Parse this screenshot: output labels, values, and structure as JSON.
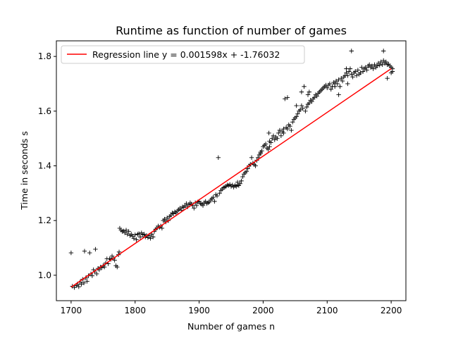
{
  "chart_data": {
    "type": "scatter",
    "title": "Runtime as function of number of games",
    "xlabel": "Number of games n",
    "ylabel": "Time in seconds s",
    "xlim": [
      1677,
      2223
    ],
    "ylim": [
      0.907,
      1.857
    ],
    "xticks": [
      1700,
      1800,
      1900,
      2000,
      2100,
      2200
    ],
    "xtick_labels": [
      "1700",
      "1800",
      "1900",
      "2000",
      "2100",
      "2200"
    ],
    "yticks": [
      1.0,
      1.2,
      1.4,
      1.6,
      1.8
    ],
    "ytick_labels": [
      "1.0",
      "1.2",
      "1.4",
      "1.6",
      "1.8"
    ],
    "grid": false,
    "legend_position": "top-left",
    "series": [
      {
        "name": "",
        "kind": "points",
        "marker": "+",
        "color": "#000000",
        "points": [
          [
            1700,
            1.082
          ],
          [
            1702,
            0.96
          ],
          [
            1705,
            0.955
          ],
          [
            1708,
            0.962
          ],
          [
            1710,
            0.968
          ],
          [
            1712,
            0.958
          ],
          [
            1714,
            0.975
          ],
          [
            1716,
            0.967
          ],
          [
            1718,
            0.985
          ],
          [
            1720,
            0.972
          ],
          [
            1721,
            1.088
          ],
          [
            1723,
            0.99
          ],
          [
            1725,
            0.978
          ],
          [
            1727,
            0.998
          ],
          [
            1729,
            1.082
          ],
          [
            1731,
            1.005
          ],
          [
            1733,
            0.998
          ],
          [
            1735,
            1.02
          ],
          [
            1737,
            1.012
          ],
          [
            1738,
            1.095
          ],
          [
            1740,
            1.005
          ],
          [
            1742,
            1.025
          ],
          [
            1744,
            1.02
          ],
          [
            1746,
            1.03
          ],
          [
            1748,
            1.028
          ],
          [
            1750,
            1.035
          ],
          [
            1752,
            1.03
          ],
          [
            1754,
            1.045
          ],
          [
            1756,
            1.06
          ],
          [
            1758,
            1.042
          ],
          [
            1760,
            1.06
          ],
          [
            1762,
            1.058
          ],
          [
            1764,
            1.07
          ],
          [
            1766,
            1.062
          ],
          [
            1768,
            1.055
          ],
          [
            1770,
            1.035
          ],
          [
            1772,
            1.03
          ],
          [
            1774,
            1.075
          ],
          [
            1775,
            1.085
          ],
          [
            1776,
            1.172
          ],
          [
            1778,
            1.165
          ],
          [
            1780,
            1.16
          ],
          [
            1782,
            1.162
          ],
          [
            1784,
            1.155
          ],
          [
            1786,
            1.165
          ],
          [
            1788,
            1.15
          ],
          [
            1790,
            1.16
          ],
          [
            1792,
            1.145
          ],
          [
            1794,
            1.15
          ],
          [
            1796,
            1.142
          ],
          [
            1798,
            1.135
          ],
          [
            1800,
            1.148
          ],
          [
            1802,
            1.13
          ],
          [
            1804,
            1.15
          ],
          [
            1806,
            1.152
          ],
          [
            1808,
            1.14
          ],
          [
            1810,
            1.155
          ],
          [
            1812,
            1.148
          ],
          [
            1814,
            1.15
          ],
          [
            1816,
            1.14
          ],
          [
            1818,
            1.145
          ],
          [
            1820,
            1.138
          ],
          [
            1822,
            1.145
          ],
          [
            1824,
            1.135
          ],
          [
            1826,
            1.15
          ],
          [
            1828,
            1.14
          ],
          [
            1830,
            1.16
          ],
          [
            1832,
            1.168
          ],
          [
            1834,
            1.172
          ],
          [
            1836,
            1.18
          ],
          [
            1838,
            1.175
          ],
          [
            1840,
            1.18
          ],
          [
            1842,
            1.172
          ],
          [
            1844,
            1.2
          ],
          [
            1846,
            1.205
          ],
          [
            1848,
            1.195
          ],
          [
            1850,
            1.21
          ],
          [
            1852,
            1.2
          ],
          [
            1854,
            1.215
          ],
          [
            1856,
            1.22
          ],
          [
            1858,
            1.228
          ],
          [
            1860,
            1.225
          ],
          [
            1862,
            1.232
          ],
          [
            1864,
            1.228
          ],
          [
            1866,
            1.235
          ],
          [
            1868,
            1.24
          ],
          [
            1870,
            1.245
          ],
          [
            1872,
            1.238
          ],
          [
            1874,
            1.25
          ],
          [
            1876,
            1.248
          ],
          [
            1878,
            1.255
          ],
          [
            1880,
            1.262
          ],
          [
            1882,
            1.25
          ],
          [
            1884,
            1.258
          ],
          [
            1886,
            1.265
          ],
          [
            1888,
            1.26
          ],
          [
            1890,
            1.255
          ],
          [
            1892,
            1.245
          ],
          [
            1894,
            1.265
          ],
          [
            1896,
            1.255
          ],
          [
            1898,
            1.268
          ],
          [
            1900,
            1.27
          ],
          [
            1902,
            1.262
          ],
          [
            1904,
            1.26
          ],
          [
            1906,
            1.255
          ],
          [
            1908,
            1.265
          ],
          [
            1910,
            1.27
          ],
          [
            1912,
            1.262
          ],
          [
            1914,
            1.265
          ],
          [
            1916,
            1.268
          ],
          [
            1918,
            1.275
          ],
          [
            1920,
            1.28
          ],
          [
            1922,
            1.285
          ],
          [
            1924,
            1.27
          ],
          [
            1926,
            1.295
          ],
          [
            1928,
            1.29
          ],
          [
            1930,
            1.43
          ],
          [
            1932,
            1.3
          ],
          [
            1934,
            1.31
          ],
          [
            1936,
            1.315
          ],
          [
            1938,
            1.32
          ],
          [
            1940,
            1.322
          ],
          [
            1942,
            1.325
          ],
          [
            1944,
            1.33
          ],
          [
            1946,
            1.328
          ],
          [
            1948,
            1.332
          ],
          [
            1950,
            1.325
          ],
          [
            1952,
            1.33
          ],
          [
            1954,
            1.322
          ],
          [
            1956,
            1.328
          ],
          [
            1958,
            1.325
          ],
          [
            1960,
            1.33
          ],
          [
            1962,
            1.328
          ],
          [
            1964,
            1.335
          ],
          [
            1966,
            1.345
          ],
          [
            1968,
            1.36
          ],
          [
            1970,
            1.37
          ],
          [
            1972,
            1.375
          ],
          [
            1974,
            1.38
          ],
          [
            1976,
            1.39
          ],
          [
            1978,
            1.4
          ],
          [
            1980,
            1.405
          ],
          [
            1982,
            1.43
          ],
          [
            1984,
            1.41
          ],
          [
            1986,
            1.405
          ],
          [
            1988,
            1.4
          ],
          [
            1990,
            1.42
          ],
          [
            1992,
            1.43
          ],
          [
            1994,
            1.44
          ],
          [
            1996,
            1.45
          ],
          [
            1998,
            1.455
          ],
          [
            2000,
            1.47
          ],
          [
            2002,
            1.475
          ],
          [
            2004,
            1.48
          ],
          [
            2006,
            1.465
          ],
          [
            2008,
            1.46
          ],
          [
            2010,
            1.49
          ],
          [
            2012,
            1.485
          ],
          [
            2014,
            1.5
          ],
          [
            2016,
            1.51
          ],
          [
            2018,
            1.495
          ],
          [
            2020,
            1.505
          ],
          [
            2022,
            1.5
          ],
          [
            2024,
            1.52
          ],
          [
            2026,
            1.53
          ],
          [
            2028,
            1.51
          ],
          [
            2030,
            1.525
          ],
          [
            2032,
            1.52
          ],
          [
            2034,
            1.645
          ],
          [
            2036,
            1.54
          ],
          [
            2038,
            1.535
          ],
          [
            2040,
            1.55
          ],
          [
            2042,
            1.545
          ],
          [
            2044,
            1.53
          ],
          [
            2046,
            1.56
          ],
          [
            2048,
            1.57
          ],
          [
            2050,
            1.575
          ],
          [
            2052,
            1.58
          ],
          [
            2054,
            1.59
          ],
          [
            2056,
            1.6
          ],
          [
            2058,
            1.605
          ],
          [
            2060,
            1.62
          ],
          [
            2062,
            1.61
          ],
          [
            2064,
            1.69
          ],
          [
            2066,
            1.6
          ],
          [
            2068,
            1.615
          ],
          [
            2070,
            1.625
          ],
          [
            2072,
            1.63
          ],
          [
            2074,
            1.64
          ],
          [
            2076,
            1.635
          ],
          [
            2078,
            1.645
          ],
          [
            2080,
            1.65
          ],
          [
            2082,
            1.66
          ],
          [
            2084,
            1.655
          ],
          [
            2086,
            1.665
          ],
          [
            2088,
            1.67
          ],
          [
            2090,
            1.675
          ],
          [
            2092,
            1.68
          ],
          [
            2094,
            1.685
          ],
          [
            2096,
            1.69
          ],
          [
            2098,
            1.695
          ],
          [
            2100,
            1.685
          ],
          [
            2102,
            1.695
          ],
          [
            2104,
            1.7
          ],
          [
            2106,
            1.68
          ],
          [
            2108,
            1.69
          ],
          [
            2110,
            1.705
          ],
          [
            2112,
            1.7
          ],
          [
            2114,
            1.71
          ],
          [
            2116,
            1.7
          ],
          [
            2118,
            1.715
          ],
          [
            2120,
            1.69
          ],
          [
            2122,
            1.72
          ],
          [
            2124,
            1.71
          ],
          [
            2126,
            1.725
          ],
          [
            2128,
            1.73
          ],
          [
            2130,
            1.74
          ],
          [
            2132,
            1.73
          ],
          [
            2134,
            1.745
          ],
          [
            2136,
            1.755
          ],
          [
            2138,
            1.735
          ],
          [
            2140,
            1.725
          ],
          [
            2142,
            1.74
          ],
          [
            2144,
            1.745
          ],
          [
            2146,
            1.73
          ],
          [
            2148,
            1.75
          ],
          [
            2150,
            1.735
          ],
          [
            2152,
            1.74
          ],
          [
            2154,
            1.76
          ],
          [
            2156,
            1.745
          ],
          [
            2158,
            1.755
          ],
          [
            2160,
            1.76
          ],
          [
            2162,
            1.75
          ],
          [
            2164,
            1.765
          ],
          [
            2166,
            1.77
          ],
          [
            2168,
            1.76
          ],
          [
            2170,
            1.765
          ],
          [
            2172,
            1.755
          ],
          [
            2174,
            1.77
          ],
          [
            2176,
            1.76
          ],
          [
            2178,
            1.765
          ],
          [
            2180,
            1.775
          ],
          [
            2182,
            1.768
          ],
          [
            2184,
            1.78
          ],
          [
            2186,
            1.77
          ],
          [
            2188,
            1.785
          ],
          [
            2190,
            1.775
          ],
          [
            2192,
            1.78
          ],
          [
            2194,
            1.77
          ],
          [
            2196,
            1.772
          ],
          [
            2198,
            1.765
          ],
          [
            2200,
            1.76
          ],
          [
            2202,
            1.755
          ],
          [
            2009,
            1.52
          ],
          [
            2032,
            1.535
          ],
          [
            2038,
            1.65
          ],
          [
            2052,
            1.62
          ],
          [
            2060,
            1.67
          ],
          [
            2070,
            1.66
          ],
          [
            2072,
            1.67
          ],
          [
            2112,
            1.69
          ],
          [
            2118,
            1.66
          ],
          [
            2138,
            1.82
          ],
          [
            2188,
            1.82
          ],
          [
            2130,
            1.755
          ],
          [
            2194,
            1.72
          ],
          [
            2132,
            1.7
          ],
          [
            2200,
            1.74
          ],
          [
            2202,
            1.745
          ],
          [
            2026,
            1.53
          ],
          [
            2010,
            1.47
          ],
          [
            1996,
            1.445
          ],
          [
            1960,
            1.34
          ]
        ]
      },
      {
        "name": "Regression line y = 0.001598x + -1.76032",
        "kind": "line",
        "color": "#ff0000",
        "x": [
          1700,
          2200
        ],
        "y": [
          0.95628,
          1.75528
        ]
      }
    ]
  }
}
